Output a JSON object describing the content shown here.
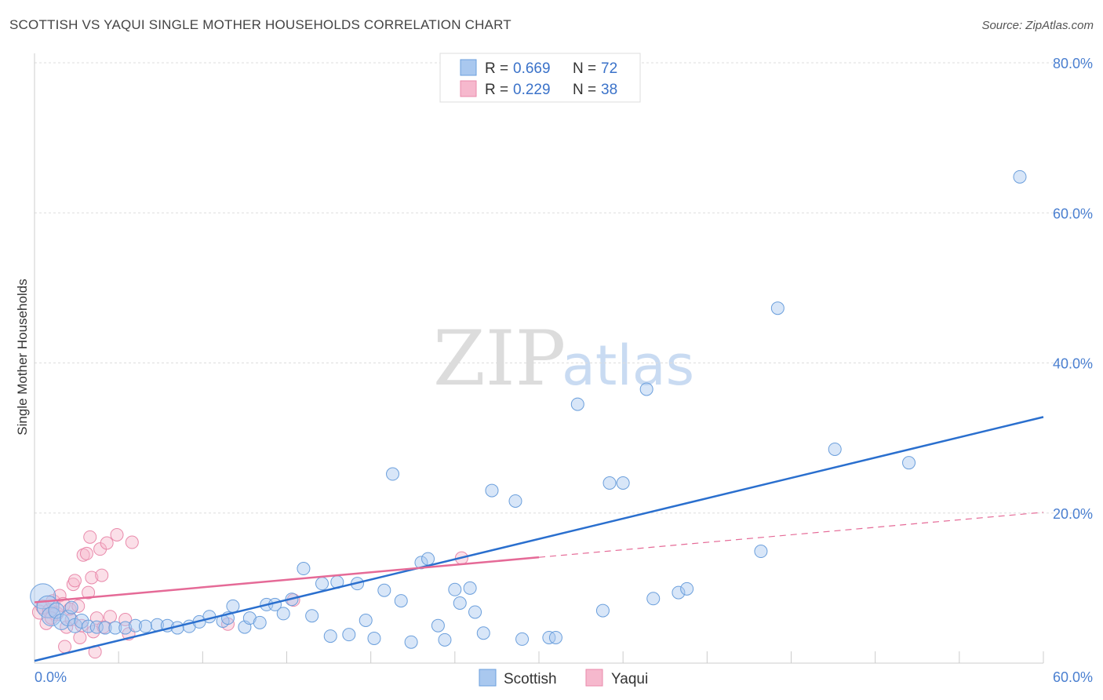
{
  "title": "SCOTTISH VS YAQUI SINGLE MOTHER HOUSEHOLDS CORRELATION CHART",
  "source": "Source: ZipAtlas.com",
  "watermark": {
    "zip": "ZIP",
    "atlas": "atlas"
  },
  "legend": {
    "r_label": "R =",
    "n_label": "N =",
    "scottish": {
      "r": "0.669",
      "n": "72"
    },
    "yaqui": {
      "r": "0.229",
      "n": "38"
    }
  },
  "colors": {
    "scottish_fill": "#a9c8ef",
    "scottish_stroke": "#6b9fdc",
    "scottish_line": "#2a6fce",
    "yaqui_fill": "#f6b8cd",
    "yaqui_stroke": "#e98aab",
    "yaqui_line": "#e56a97",
    "tick_text": "#4a7fd0",
    "grid": "#dddddd"
  },
  "chart_data": {
    "type": "scatter",
    "title": "SCOTTISH VS YAQUI SINGLE MOTHER HOUSEHOLDS CORRELATION CHART",
    "xlabel": "",
    "ylabel": "Single Mother Households",
    "xlim": [
      0,
      60
    ],
    "ylim": [
      0,
      80
    ],
    "x_tick_labels": [
      "0.0%",
      "60.0%"
    ],
    "y_ticks": [
      20,
      40,
      60,
      80
    ],
    "y_tick_labels": [
      "20.0%",
      "40.0%",
      "60.0%",
      "80.0%"
    ],
    "legend_bottom": [
      "Scottish",
      "Yaqui"
    ],
    "series": [
      {
        "name": "Scottish",
        "r": 0.669,
        "n": 72,
        "trend": {
          "x": [
            0,
            60
          ],
          "y": [
            0.3,
            32.8
          ]
        },
        "points": [
          {
            "x": 0.5,
            "y": 8.9,
            "s": 16
          },
          {
            "x": 0.8,
            "y": 7.5,
            "s": 14
          },
          {
            "x": 1.0,
            "y": 6.2,
            "s": 12
          },
          {
            "x": 1.3,
            "y": 7.0,
            "s": 10
          },
          {
            "x": 1.6,
            "y": 5.5,
            "s": 10
          },
          {
            "x": 2.0,
            "y": 6.0,
            "s": 10
          },
          {
            "x": 2.4,
            "y": 5.0,
            "s": 9
          },
          {
            "x": 2.8,
            "y": 5.6,
            "s": 9
          },
          {
            "x": 3.2,
            "y": 4.9,
            "s": 8
          },
          {
            "x": 3.7,
            "y": 4.8,
            "s": 8
          },
          {
            "x": 4.2,
            "y": 4.7,
            "s": 8
          },
          {
            "x": 4.8,
            "y": 4.7,
            "s": 8
          },
          {
            "x": 5.4,
            "y": 4.7,
            "s": 8
          },
          {
            "x": 6.0,
            "y": 5.0,
            "s": 8
          },
          {
            "x": 6.6,
            "y": 4.9,
            "s": 8
          },
          {
            "x": 7.3,
            "y": 5.1,
            "s": 8
          },
          {
            "x": 7.9,
            "y": 5.0,
            "s": 8
          },
          {
            "x": 8.5,
            "y": 4.7,
            "s": 8
          },
          {
            "x": 9.2,
            "y": 4.9,
            "s": 8
          },
          {
            "x": 9.8,
            "y": 5.5,
            "s": 8
          },
          {
            "x": 10.4,
            "y": 6.2,
            "s": 8
          },
          {
            "x": 11.2,
            "y": 5.6,
            "s": 8
          },
          {
            "x": 11.5,
            "y": 6.0,
            "s": 8
          },
          {
            "x": 11.8,
            "y": 7.6,
            "s": 8
          },
          {
            "x": 12.5,
            "y": 4.8,
            "s": 8
          },
          {
            "x": 12.8,
            "y": 6.0,
            "s": 8
          },
          {
            "x": 13.4,
            "y": 5.4,
            "s": 8
          },
          {
            "x": 13.8,
            "y": 7.8,
            "s": 8
          },
          {
            "x": 14.3,
            "y": 7.8,
            "s": 8
          },
          {
            "x": 14.8,
            "y": 6.6,
            "s": 8
          },
          {
            "x": 15.3,
            "y": 8.5,
            "s": 8
          },
          {
            "x": 16.0,
            "y": 12.6,
            "s": 8
          },
          {
            "x": 16.5,
            "y": 6.3,
            "s": 8
          },
          {
            "x": 17.1,
            "y": 10.6,
            "s": 8
          },
          {
            "x": 17.6,
            "y": 3.6,
            "s": 8
          },
          {
            "x": 18.0,
            "y": 10.8,
            "s": 8
          },
          {
            "x": 18.7,
            "y": 3.8,
            "s": 8
          },
          {
            "x": 19.2,
            "y": 10.6,
            "s": 8
          },
          {
            "x": 19.7,
            "y": 5.7,
            "s": 8
          },
          {
            "x": 20.2,
            "y": 3.3,
            "s": 8
          },
          {
            "x": 20.8,
            "y": 9.7,
            "s": 8
          },
          {
            "x": 21.3,
            "y": 25.2,
            "s": 8
          },
          {
            "x": 21.8,
            "y": 8.3,
            "s": 8
          },
          {
            "x": 22.4,
            "y": 2.8,
            "s": 8
          },
          {
            "x": 23.0,
            "y": 13.4,
            "s": 8
          },
          {
            "x": 23.4,
            "y": 13.9,
            "s": 8
          },
          {
            "x": 24.0,
            "y": 5.0,
            "s": 8
          },
          {
            "x": 24.4,
            "y": 3.1,
            "s": 8
          },
          {
            "x": 25.0,
            "y": 9.8,
            "s": 8
          },
          {
            "x": 25.3,
            "y": 8.0,
            "s": 8
          },
          {
            "x": 25.9,
            "y": 10.0,
            "s": 8
          },
          {
            "x": 26.2,
            "y": 6.8,
            "s": 8
          },
          {
            "x": 26.7,
            "y": 4.0,
            "s": 8
          },
          {
            "x": 27.2,
            "y": 23.0,
            "s": 8
          },
          {
            "x": 28.6,
            "y": 21.6,
            "s": 8
          },
          {
            "x": 29.0,
            "y": 3.2,
            "s": 8
          },
          {
            "x": 30.6,
            "y": 3.4,
            "s": 8
          },
          {
            "x": 31.0,
            "y": 3.4,
            "s": 8
          },
          {
            "x": 32.3,
            "y": 34.5,
            "s": 8
          },
          {
            "x": 33.8,
            "y": 7.0,
            "s": 8
          },
          {
            "x": 34.2,
            "y": 24.0,
            "s": 8
          },
          {
            "x": 35.0,
            "y": 24.0,
            "s": 8
          },
          {
            "x": 36.4,
            "y": 36.5,
            "s": 8
          },
          {
            "x": 36.8,
            "y": 8.6,
            "s": 8
          },
          {
            "x": 38.3,
            "y": 9.4,
            "s": 8
          },
          {
            "x": 38.8,
            "y": 9.9,
            "s": 8
          },
          {
            "x": 43.2,
            "y": 14.9,
            "s": 8
          },
          {
            "x": 44.2,
            "y": 47.3,
            "s": 8
          },
          {
            "x": 47.6,
            "y": 28.5,
            "s": 8
          },
          {
            "x": 52.0,
            "y": 26.7,
            "s": 8
          },
          {
            "x": 58.6,
            "y": 64.8,
            "s": 8
          },
          {
            "x": 2.2,
            "y": 7.4,
            "s": 8
          }
        ]
      },
      {
        "name": "Yaqui",
        "r": 0.229,
        "n": 38,
        "trend": {
          "x": [
            0,
            30
          ],
          "y": [
            8.1,
            14.1
          ]
        },
        "trend_dashed": {
          "x": [
            30,
            60
          ],
          "y": [
            14.1,
            20.1
          ]
        },
        "points": [
          {
            "x": 0.3,
            "y": 6.8,
            "s": 9
          },
          {
            "x": 0.5,
            "y": 7.5,
            "s": 9
          },
          {
            "x": 0.7,
            "y": 5.3,
            "s": 8
          },
          {
            "x": 0.9,
            "y": 7.0,
            "s": 9
          },
          {
            "x": 1.1,
            "y": 8.2,
            "s": 9
          },
          {
            "x": 1.3,
            "y": 6.6,
            "s": 9
          },
          {
            "x": 1.5,
            "y": 9.0,
            "s": 8
          },
          {
            "x": 1.7,
            "y": 7.8,
            "s": 9
          },
          {
            "x": 1.8,
            "y": 2.2,
            "s": 8
          },
          {
            "x": 1.9,
            "y": 4.8,
            "s": 8
          },
          {
            "x": 2.1,
            "y": 7.2,
            "s": 8
          },
          {
            "x": 2.2,
            "y": 5.8,
            "s": 8
          },
          {
            "x": 2.3,
            "y": 10.5,
            "s": 8
          },
          {
            "x": 2.4,
            "y": 11.0,
            "s": 8
          },
          {
            "x": 2.6,
            "y": 7.6,
            "s": 8
          },
          {
            "x": 2.7,
            "y": 3.4,
            "s": 8
          },
          {
            "x": 2.8,
            "y": 5.0,
            "s": 8
          },
          {
            "x": 2.9,
            "y": 14.4,
            "s": 8
          },
          {
            "x": 3.1,
            "y": 14.6,
            "s": 8
          },
          {
            "x": 3.2,
            "y": 9.4,
            "s": 8
          },
          {
            "x": 3.3,
            "y": 16.8,
            "s": 8
          },
          {
            "x": 3.4,
            "y": 11.4,
            "s": 8
          },
          {
            "x": 3.5,
            "y": 4.2,
            "s": 8
          },
          {
            "x": 3.6,
            "y": 1.5,
            "s": 8
          },
          {
            "x": 3.7,
            "y": 6.0,
            "s": 8
          },
          {
            "x": 3.9,
            "y": 15.2,
            "s": 8
          },
          {
            "x": 4.0,
            "y": 11.7,
            "s": 8
          },
          {
            "x": 4.1,
            "y": 4.8,
            "s": 8
          },
          {
            "x": 4.3,
            "y": 16.0,
            "s": 8
          },
          {
            "x": 4.5,
            "y": 6.2,
            "s": 8
          },
          {
            "x": 4.9,
            "y": 17.1,
            "s": 8
          },
          {
            "x": 5.4,
            "y": 5.8,
            "s": 8
          },
          {
            "x": 5.6,
            "y": 3.9,
            "s": 8
          },
          {
            "x": 5.8,
            "y": 16.1,
            "s": 8
          },
          {
            "x": 11.5,
            "y": 5.2,
            "s": 8
          },
          {
            "x": 15.4,
            "y": 8.4,
            "s": 8
          },
          {
            "x": 25.4,
            "y": 14.0,
            "s": 8
          },
          {
            "x": 1.0,
            "y": 6.0,
            "s": 8
          }
        ]
      }
    ]
  }
}
